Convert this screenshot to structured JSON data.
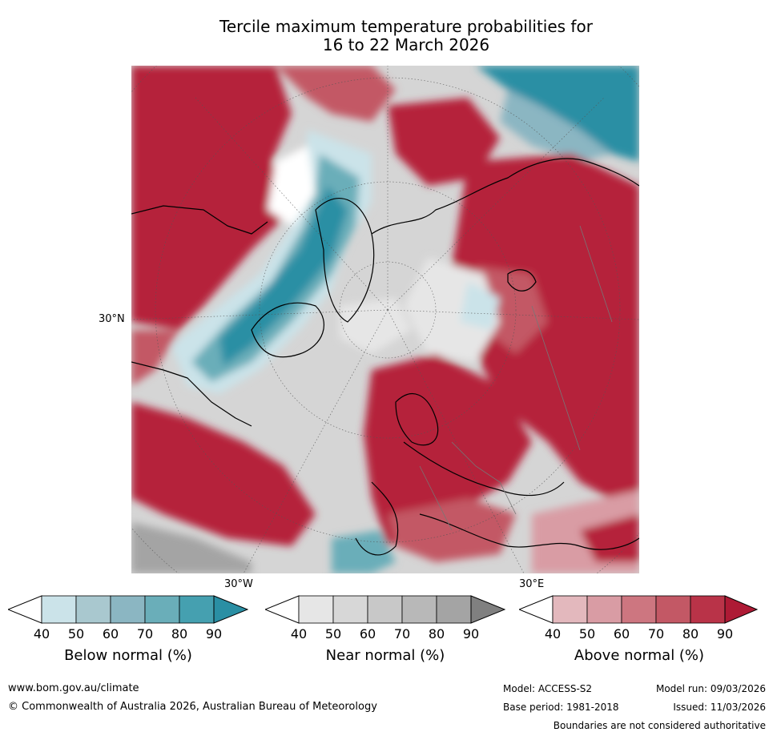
{
  "title": {
    "line1": "Tercile maximum temperature probabilities for",
    "line2": "16 to 22 March 2026"
  },
  "map": {
    "projection": "north-polar-stereographic",
    "lat_labels": [
      "30°N"
    ],
    "lon_labels": [
      "30°W",
      "30°E"
    ]
  },
  "colorbars": [
    {
      "title": "Below normal (%)",
      "ticks": [
        "40",
        "50",
        "60",
        "70",
        "80",
        "90"
      ],
      "colors": [
        "#ffffff",
        "#cbe3e9",
        "#a9c8cf",
        "#8bb6c2",
        "#6aaeb9",
        "#45a0b0",
        "#2a8fa4"
      ]
    },
    {
      "title": "Near normal (%)",
      "ticks": [
        "40",
        "50",
        "60",
        "70",
        "80",
        "90"
      ],
      "colors": [
        "#ffffff",
        "#e6e6e6",
        "#d7d7d7",
        "#c8c8c8",
        "#b8b8b8",
        "#a4a4a4",
        "#808080"
      ]
    },
    {
      "title": "Above normal (%)",
      "ticks": [
        "40",
        "50",
        "60",
        "70",
        "80",
        "90"
      ],
      "colors": [
        "#ffffff",
        "#e3b8bd",
        "#d99ca4",
        "#cd7680",
        "#c35865",
        "#b93348",
        "#ae1a35"
      ]
    }
  ],
  "footer": {
    "website": "www.bom.gov.au/climate",
    "copyright": "© Commonwealth of Australia 2026, Australian Bureau of Meteorology",
    "model": "Model: ACCESS-S2",
    "model_run": "Model run: 09/03/2026",
    "base_period": "Base period: 1981-2018",
    "issued": "Issued: 11/03/2026",
    "disclaimer": "Boundaries are not considered authoritative"
  }
}
